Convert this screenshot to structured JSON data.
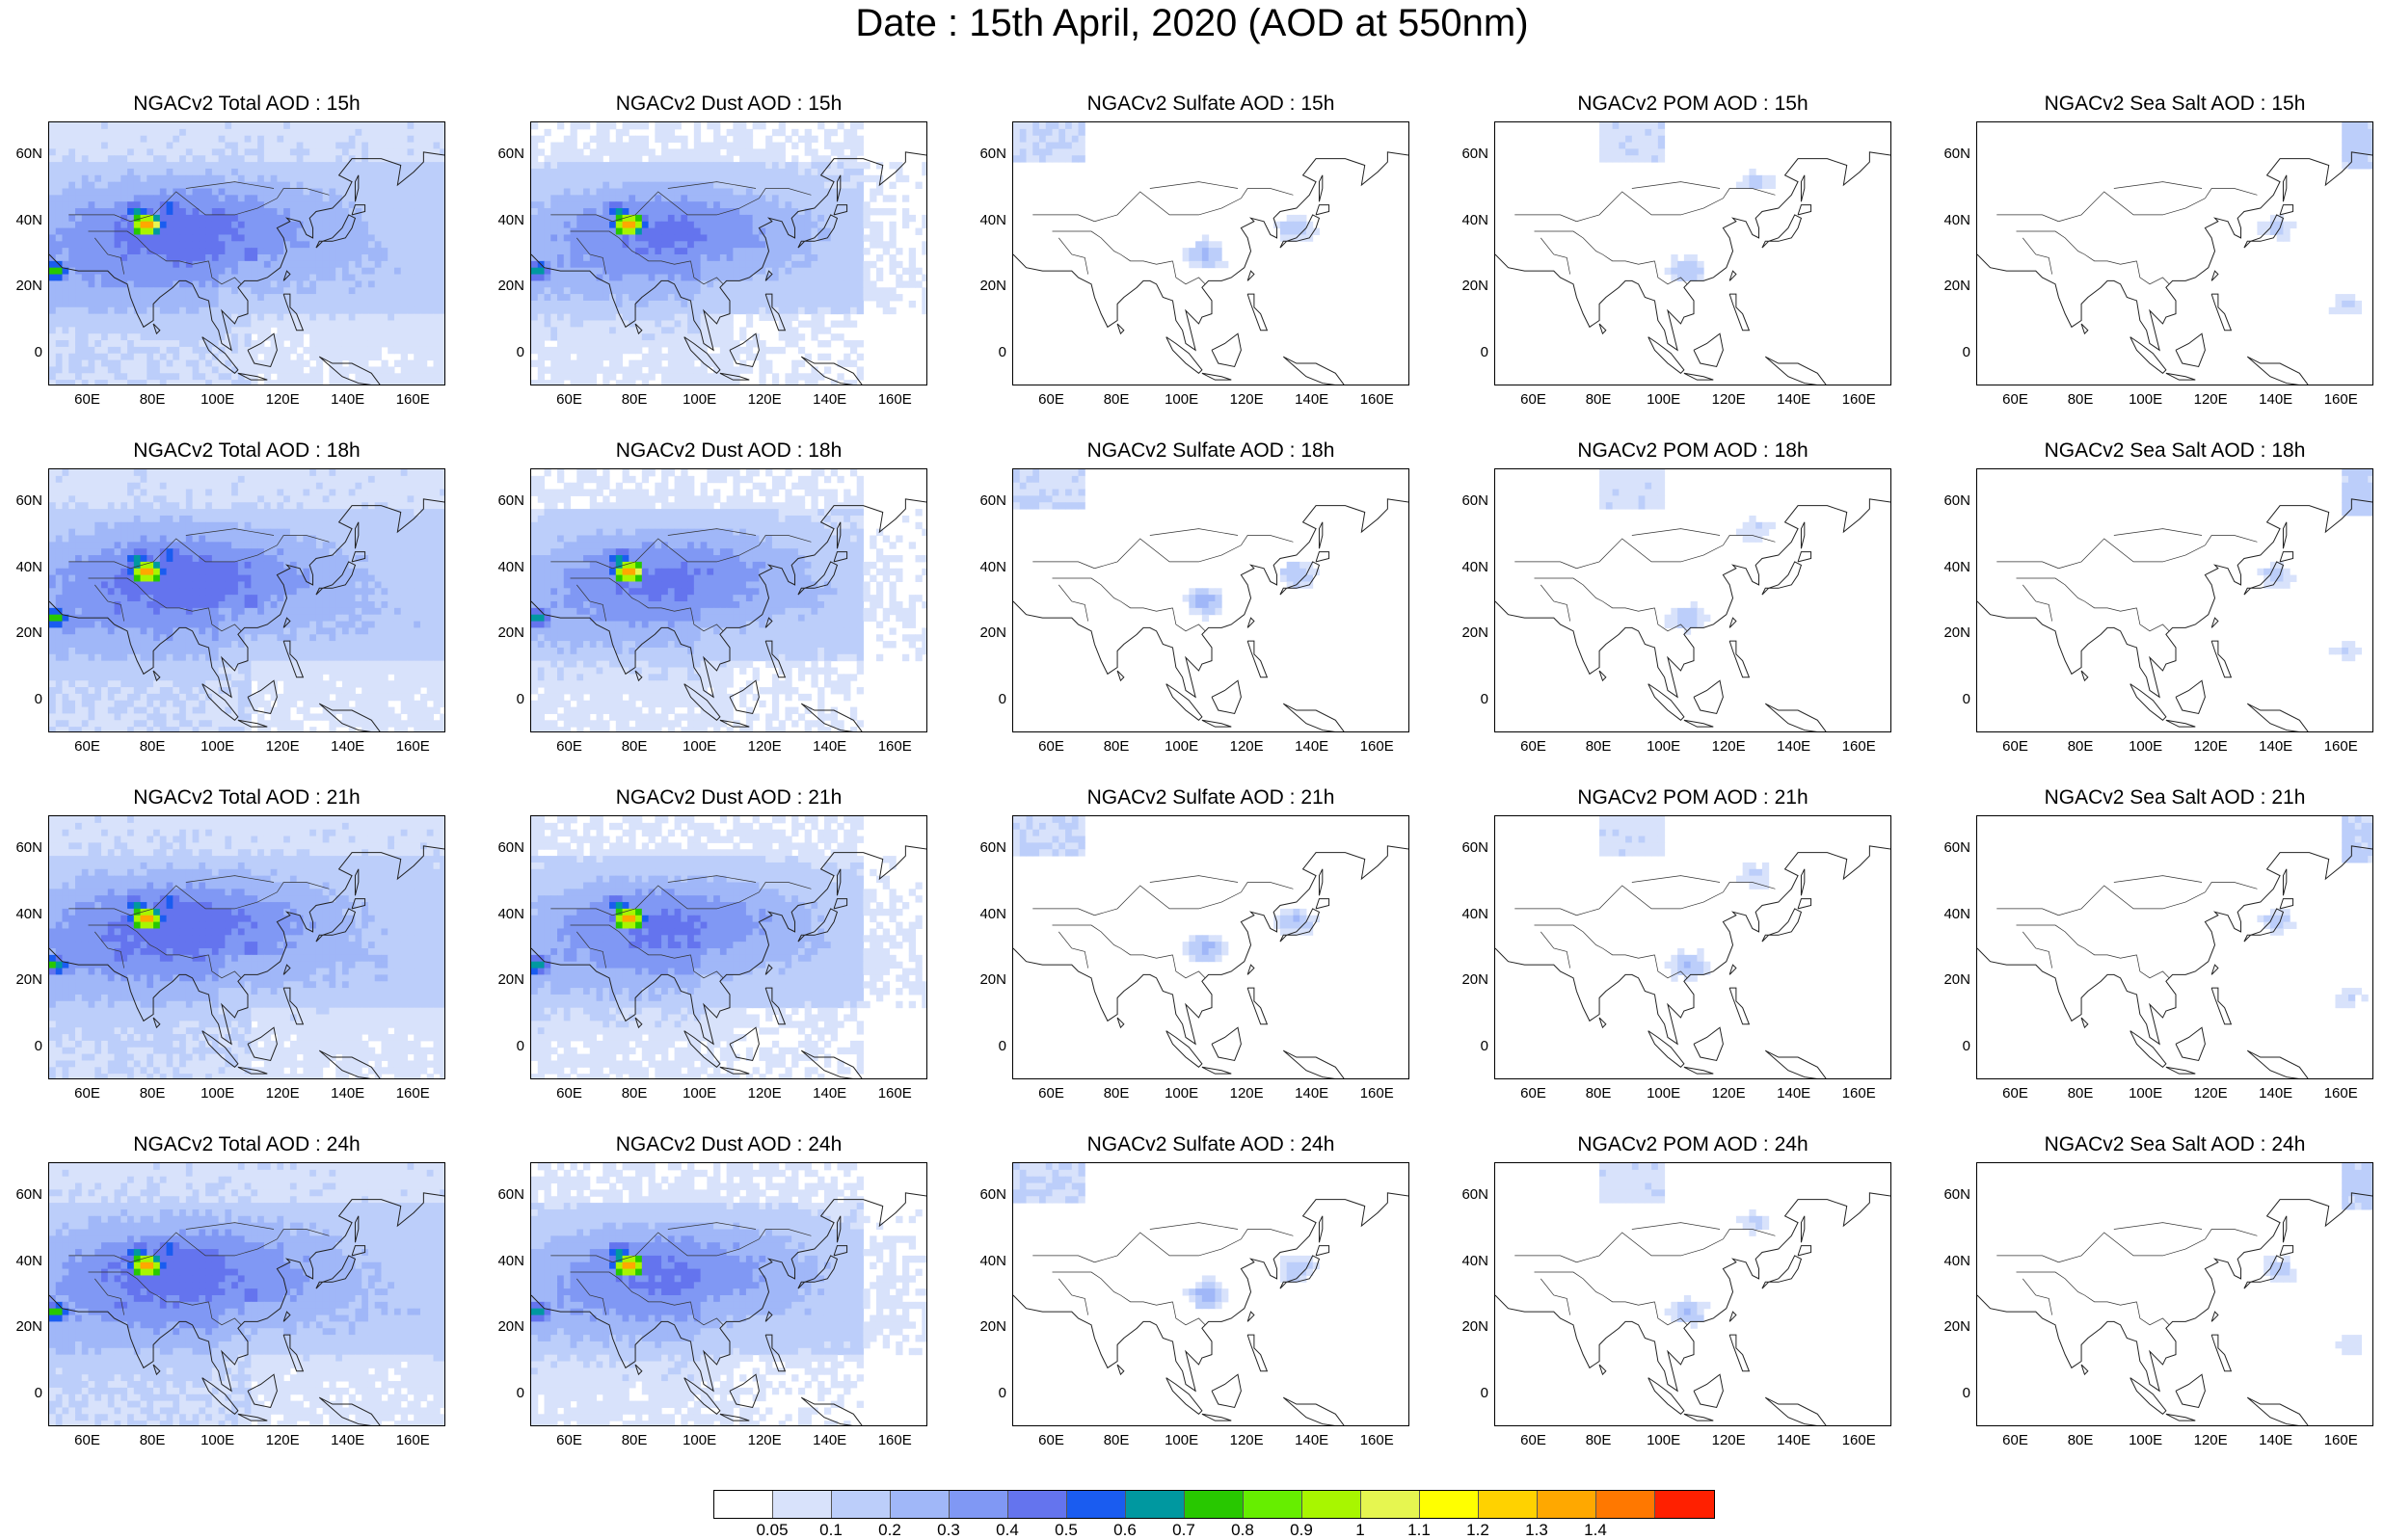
{
  "title": "Date : 15th April, 2020 (AOD at 550nm)",
  "axes": {
    "y_ticks": [
      "60N",
      "40N",
      "20N",
      "0"
    ],
    "x_ticks": [
      "60E",
      "80E",
      "100E",
      "120E",
      "140E",
      "160E"
    ]
  },
  "colorbar": {
    "levels": [
      "0.05",
      "0.1",
      "0.2",
      "0.3",
      "0.4",
      "0.5",
      "0.6",
      "0.7",
      "0.8",
      "0.9",
      "1",
      "1.1",
      "1.2",
      "1.3",
      "1.4"
    ],
    "colors": [
      "#ffffff",
      "#d8e2fb",
      "#bccefa",
      "#a0b7f8",
      "#8098f4",
      "#6474ee",
      "#1a5cf0",
      "#0098a0",
      "#28c800",
      "#66ee00",
      "#a8f600",
      "#e6f650",
      "#ffff00",
      "#ffd200",
      "#ffa800",
      "#ff7800",
      "#ff2000"
    ]
  },
  "chart_data": {
    "type": "heatmap",
    "title": "Date : 15th April, 2020 (AOD at 550nm)",
    "region": {
      "lon_range": [
        48,
        170
      ],
      "lat_range": [
        -10,
        70
      ]
    },
    "rows": [
      "15h",
      "18h",
      "21h",
      "24h"
    ],
    "columns": [
      "Total",
      "Dust",
      "Sulfate",
      "POM",
      "Sea Salt"
    ],
    "panel_titles": [
      [
        "NGACv2 Total AOD : 15h",
        "NGACv2 Dust AOD : 15h",
        "NGACv2 Sulfate AOD : 15h",
        "NGACv2 POM AOD : 15h",
        "NGACv2 Sea Salt AOD : 15h"
      ],
      [
        "NGACv2 Total AOD : 18h",
        "NGACv2 Dust AOD : 18h",
        "NGACv2 Sulfate AOD : 18h",
        "NGACv2 POM AOD : 18h",
        "NGACv2 Sea Salt AOD : 18h"
      ],
      [
        "NGACv2 Total AOD : 21h",
        "NGACv2 Dust AOD : 21h",
        "NGACv2 Sulfate AOD : 21h",
        "NGACv2 POM AOD : 21h",
        "NGACv2 Sea Salt AOD : 21h"
      ],
      [
        "NGACv2 Total AOD : 24h",
        "NGACv2 Dust AOD : 24h",
        "NGACv2 Sulfate AOD : 24h",
        "NGACv2 POM AOD : 24h",
        "NGACv2 Sea Salt  AOD : 24h"
      ]
    ],
    "features": {
      "Total": [
        {
          "lon": 78,
          "lat": 39,
          "aod": 1.4
        },
        {
          "lon": 75,
          "lat": 43,
          "aod": 0.65
        },
        {
          "lon": 85,
          "lat": 44,
          "aod": 0.6
        },
        {
          "lon": 50,
          "lat": 25,
          "aod": 0.75
        },
        {
          "lon": 70,
          "lat": 28,
          "aod": 0.45
        },
        {
          "lon": 110,
          "lat": 30,
          "aod": 0.5
        }
      ],
      "Dust": [
        {
          "lon": 78,
          "lat": 39,
          "aod": 1.4
        },
        {
          "lon": 75,
          "lat": 43,
          "aod": 0.65
        },
        {
          "lon": 50,
          "lat": 25,
          "aod": 0.7
        }
      ],
      "Sulfate": [
        {
          "lon": 107,
          "lat": 30,
          "aod": 0.25
        },
        {
          "lon": 135,
          "lat": 38,
          "aod": 0.2
        }
      ],
      "POM": [
        {
          "lon": 107,
          "lat": 25,
          "aod": 0.2
        },
        {
          "lon": 128,
          "lat": 52,
          "aod": 0.12
        }
      ],
      "Sea Salt": [
        {
          "lon": 140,
          "lat": 38,
          "aod": 0.15
        },
        {
          "lon": 162,
          "lat": 15,
          "aod": 0.1
        }
      ]
    }
  }
}
